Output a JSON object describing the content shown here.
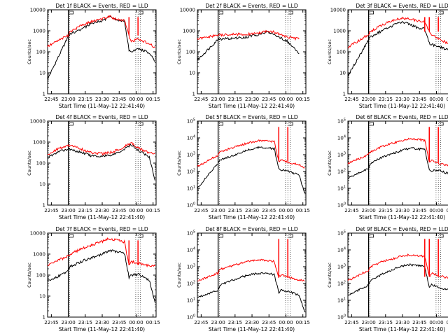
{
  "figure": {
    "xlabel": "Start Time (11-May-12 22:41:40)",
    "ylabel": "Counts/sec",
    "x_ticks": [
      "22:45",
      "23:00",
      "23:15",
      "23:30",
      "23:45",
      "00:00",
      "00:15"
    ],
    "series_colors": {
      "events": "#000000",
      "lld": "#ff0000"
    }
  },
  "chart_data": [
    {
      "type": "line",
      "title": "Det 1f BLACK = Events, RED = LLD",
      "y_tick_labels": [
        "1",
        "10",
        "100",
        "1000",
        "10000"
      ],
      "ylim": [
        1,
        10000
      ],
      "yscale": "log",
      "profile": "flare",
      "x_minutes": [
        0,
        18,
        20,
        30,
        40,
        48,
        55,
        62,
        68,
        72,
        74,
        80,
        90,
        95
      ],
      "series": [
        {
          "values": [
            5,
            500,
            700,
            1200,
            2400,
            3000,
            4500,
            3200,
            3000,
            120,
            90,
            140,
            90,
            35
          ]
        },
        {
          "values": [
            180,
            600,
            900,
            1800,
            2900,
            3600,
            4800,
            3300,
            3100,
            600,
            300,
            420,
            240,
            160
          ]
        }
      ],
      "spikes_x": [
        72,
        80
      ]
    },
    {
      "type": "line",
      "title": "Det 2f BLACK = Events, RED = LLD",
      "y_tick_labels": [
        "1",
        "10",
        "100",
        "1000",
        "10000"
      ],
      "ylim": [
        1,
        10000
      ],
      "yscale": "log",
      "profile": "flat",
      "x_minutes": [
        0,
        18,
        25,
        35,
        45,
        55,
        62,
        70,
        80,
        90
      ],
      "series": [
        {
          "values": [
            40,
            380,
            420,
            450,
            520,
            700,
            900,
            600,
            300,
            80
          ]
        },
        {
          "values": [
            400,
            620,
            640,
            680,
            700,
            800,
            1000,
            800,
            500,
            400
          ]
        }
      ],
      "spikes_x": []
    },
    {
      "type": "line",
      "title": "Det 3f BLACK = Events, RED = LLD",
      "y_tick_labels": [
        "1",
        "10",
        "100",
        "1000",
        "10000"
      ],
      "ylim": [
        1,
        10000
      ],
      "yscale": "log",
      "profile": "flare",
      "x_minutes": [
        0,
        18,
        20,
        30,
        40,
        48,
        55,
        62,
        68,
        72,
        74,
        80,
        90,
        95
      ],
      "series": [
        {
          "values": [
            7,
            350,
            500,
            1000,
            1800,
            2600,
            2000,
            1400,
            1200,
            250,
            220,
            180,
            120,
            25
          ]
        },
        {
          "values": [
            160,
            650,
            900,
            1900,
            3000,
            4100,
            3600,
            2900,
            2600,
            900,
            700,
            420,
            230,
            150
          ]
        }
      ],
      "spikes_x": [
        68,
        72,
        80
      ]
    },
    {
      "type": "line",
      "title": "Det 4f BLACK = Events, RED = LLD",
      "y_tick_labels": [
        "1",
        "10",
        "100",
        "1000",
        "10000"
      ],
      "ylim": [
        1,
        10000
      ],
      "yscale": "log",
      "profile": "dip",
      "x_minutes": [
        0,
        10,
        18,
        28,
        38,
        48,
        58,
        66,
        74,
        82,
        90,
        95
      ],
      "series": [
        {
          "values": [
            180,
            350,
            480,
            350,
            230,
            200,
            260,
            400,
            750,
            350,
            200,
            15
          ]
        },
        {
          "values": [
            250,
            500,
            700,
            500,
            320,
            280,
            340,
            550,
            900,
            480,
            300,
            300
          ]
        }
      ],
      "spikes_x": []
    },
    {
      "type": "line",
      "title": "Det 5f BLACK = Events, RED = LLD",
      "y_tick_labels": [
        "10^0",
        "10^1",
        "10^2",
        "10^3",
        "10^4",
        "10^5"
      ],
      "ylim": [
        1,
        100000
      ],
      "yscale": "log",
      "profile": "flare",
      "x_minutes": [
        0,
        18,
        20,
        30,
        40,
        48,
        55,
        62,
        68,
        72,
        74,
        80,
        90,
        95
      ],
      "series": [
        {
          "values": [
            10,
            300,
            500,
            800,
            1500,
            2200,
            2800,
            2500,
            2300,
            150,
            120,
            110,
            60,
            5
          ]
        },
        {
          "values": [
            200,
            900,
            1500,
            2500,
            4000,
            5500,
            7000,
            6500,
            6000,
            400,
            500,
            350,
            250,
            170
          ]
        }
      ],
      "spikes_x": [
        72,
        80
      ]
    },
    {
      "type": "line",
      "title": "Det 6f BLACK = Events, RED = LLD",
      "y_tick_labels": [
        "10^0",
        "10^1",
        "10^2",
        "10^3",
        "10^4",
        "10^5"
      ],
      "ylim": [
        1,
        100000
      ],
      "yscale": "log",
      "profile": "flare",
      "x_minutes": [
        0,
        18,
        20,
        30,
        40,
        48,
        55,
        62,
        68,
        72,
        74,
        80,
        90,
        95
      ],
      "series": [
        {
          "values": [
            40,
            150,
            300,
            700,
            1200,
            1800,
            2500,
            2200,
            2000,
            120,
            110,
            120,
            70,
            5
          ]
        },
        {
          "values": [
            300,
            1000,
            1500,
            3000,
            5000,
            6500,
            9000,
            8000,
            7000,
            350,
            500,
            300,
            230,
            170
          ]
        }
      ],
      "spikes_x": [
        72,
        80
      ]
    },
    {
      "type": "line",
      "title": "Det 7f BLACK = Events, RED = LLD",
      "y_tick_labels": [
        "1",
        "10",
        "100",
        "1000",
        "10000"
      ],
      "ylim": [
        1,
        10000
      ],
      "yscale": "log",
      "profile": "flare",
      "x_minutes": [
        0,
        18,
        20,
        30,
        40,
        48,
        55,
        62,
        68,
        72,
        74,
        80,
        90,
        95
      ],
      "series": [
        {
          "values": [
            50,
            150,
            250,
            450,
            700,
            1000,
            1500,
            1300,
            1100,
            80,
            100,
            110,
            60,
            5
          ]
        },
        {
          "values": [
            300,
            800,
            1000,
            1800,
            2800,
            4000,
            5500,
            4500,
            3800,
            300,
            450,
            380,
            280,
            270
          ]
        }
      ],
      "spikes_x": [
        72,
        80
      ]
    },
    {
      "type": "line",
      "title": "Det 8f BLACK = Events, RED = LLD",
      "y_tick_labels": [
        "10^0",
        "10^1",
        "10^2",
        "10^3",
        "10^4",
        "10^5"
      ],
      "ylim": [
        1,
        100000
      ],
      "yscale": "log",
      "profile": "flare",
      "x_minutes": [
        0,
        18,
        20,
        30,
        40,
        48,
        55,
        62,
        68,
        72,
        74,
        80,
        90,
        95
      ],
      "series": [
        {
          "values": [
            15,
            40,
            80,
            150,
            250,
            350,
            400,
            380,
            350,
            30,
            40,
            35,
            20,
            2
          ]
        },
        {
          "values": [
            150,
            400,
            700,
            1100,
            1700,
            2200,
            2600,
            2300,
            2100,
            220,
            350,
            240,
            160,
            140
          ]
        }
      ],
      "spikes_x": [
        72,
        80
      ]
    },
    {
      "type": "line",
      "title": "Det 9f BLACK = Events, RED = LLD",
      "y_tick_labels": [
        "10^0",
        "10^1",
        "10^2",
        "10^3",
        "10^4",
        "10^5"
      ],
      "ylim": [
        1,
        100000
      ],
      "yscale": "log",
      "profile": "flare",
      "x_minutes": [
        0,
        18,
        20,
        30,
        40,
        48,
        55,
        62,
        68,
        72,
        74,
        80,
        90,
        95
      ],
      "series": [
        {
          "values": [
            20,
            80,
            150,
            350,
            700,
            1100,
            1300,
            1200,
            1000,
            60,
            90,
            60,
            40,
            3
          ]
        },
        {
          "values": [
            150,
            600,
            1000,
            2000,
            3000,
            4500,
            5000,
            4500,
            4000,
            250,
            400,
            300,
            200,
            150
          ]
        }
      ],
      "spikes_x": [
        68,
        72,
        80
      ]
    }
  ]
}
